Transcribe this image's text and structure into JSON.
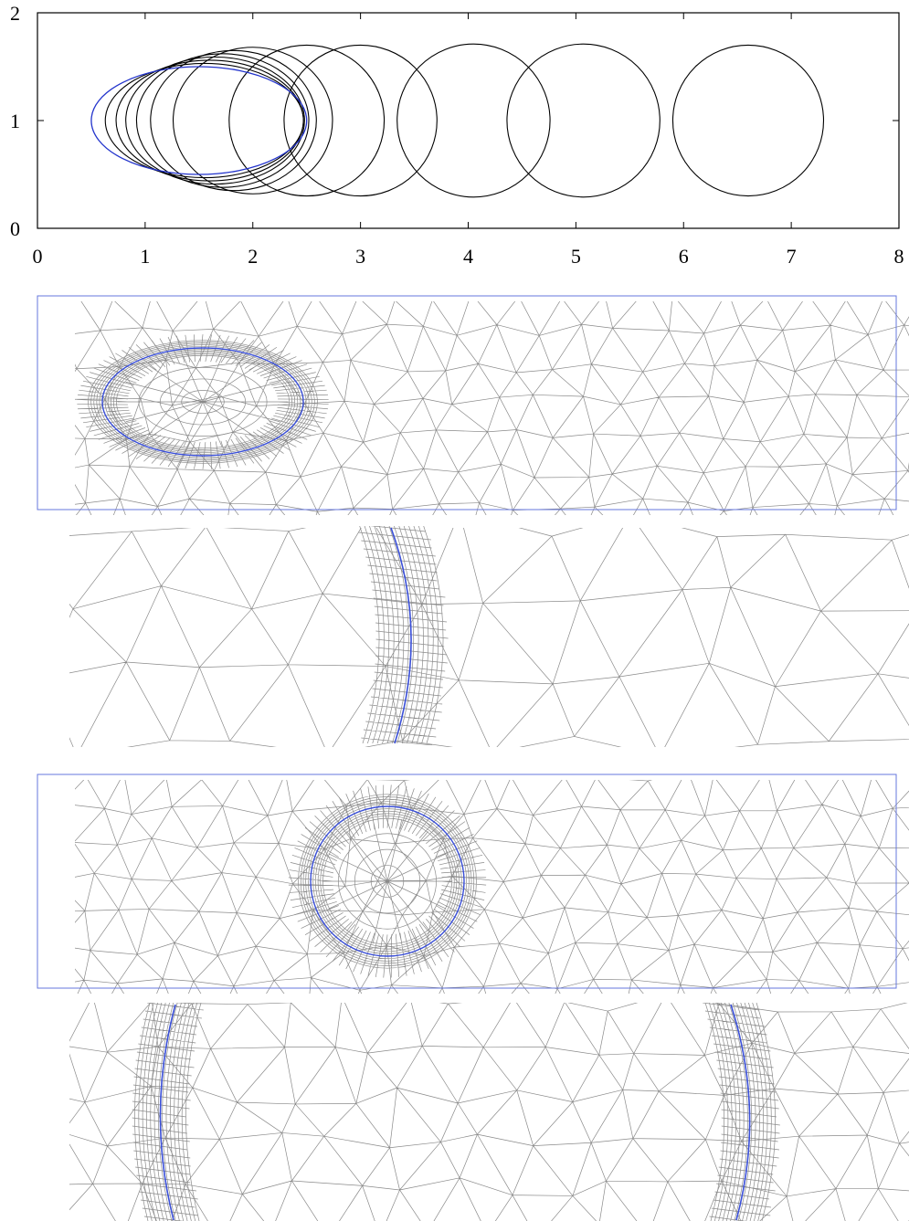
{
  "figure": {
    "plot": {
      "x_ticks": [
        "0",
        "1",
        "2",
        "3",
        "4",
        "5",
        "6",
        "7",
        "8"
      ],
      "y_ticks": [
        "0",
        "1",
        "2"
      ],
      "xlim": [
        0,
        8
      ],
      "ylim": [
        0,
        2
      ],
      "initial_shape": {
        "cx": 1.5,
        "cy": 1.0,
        "rx": 1.0,
        "ry": 0.5,
        "color": "#2233cc"
      },
      "evolving_shapes": [
        {
          "cx": 1.55,
          "cy": 1.0,
          "rx": 0.92,
          "ry": 0.53
        },
        {
          "cx": 1.6,
          "cy": 1.0,
          "rx": 0.87,
          "ry": 0.56
        },
        {
          "cx": 1.65,
          "cy": 1.0,
          "rx": 0.83,
          "ry": 0.59
        },
        {
          "cx": 1.72,
          "cy": 1.0,
          "rx": 0.8,
          "ry": 0.62
        },
        {
          "cx": 1.82,
          "cy": 1.0,
          "rx": 0.77,
          "ry": 0.65
        },
        {
          "cx": 2.0,
          "cy": 1.0,
          "rx": 0.74,
          "ry": 0.68
        },
        {
          "cx": 2.5,
          "cy": 1.0,
          "rx": 0.72,
          "ry": 0.7
        },
        {
          "cx": 3.0,
          "cy": 1.0,
          "rx": 0.71,
          "ry": 0.7
        },
        {
          "cx": 4.05,
          "cy": 1.0,
          "rx": 0.71,
          "ry": 0.71
        },
        {
          "cx": 5.07,
          "cy": 1.0,
          "rx": 0.71,
          "ry": 0.71
        },
        {
          "cx": 6.6,
          "cy": 1.0,
          "rx": 0.7,
          "ry": 0.7
        }
      ],
      "curve_color": "#000000"
    },
    "mesh_colors": {
      "edges": "#8a8a8a",
      "interface": "#3a4fd8",
      "frame": "#6677dd"
    }
  }
}
